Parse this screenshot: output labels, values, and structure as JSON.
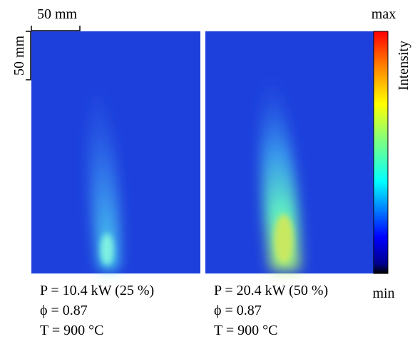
{
  "scale_bar": {
    "horizontal": "50 mm",
    "vertical": "50 mm"
  },
  "panels": [
    {
      "power": "P = 10.4 kW (25 %)",
      "equivalence_ratio": "ϕ = 0.87",
      "temperature": "T = 900 °C"
    },
    {
      "power": "P = 20.4 kW (50 %)",
      "equivalence_ratio": "ϕ = 0.87",
      "temperature": "T = 900 °C"
    }
  ],
  "colorbar": {
    "max": "max",
    "min": "min",
    "label": "Intensity"
  }
}
